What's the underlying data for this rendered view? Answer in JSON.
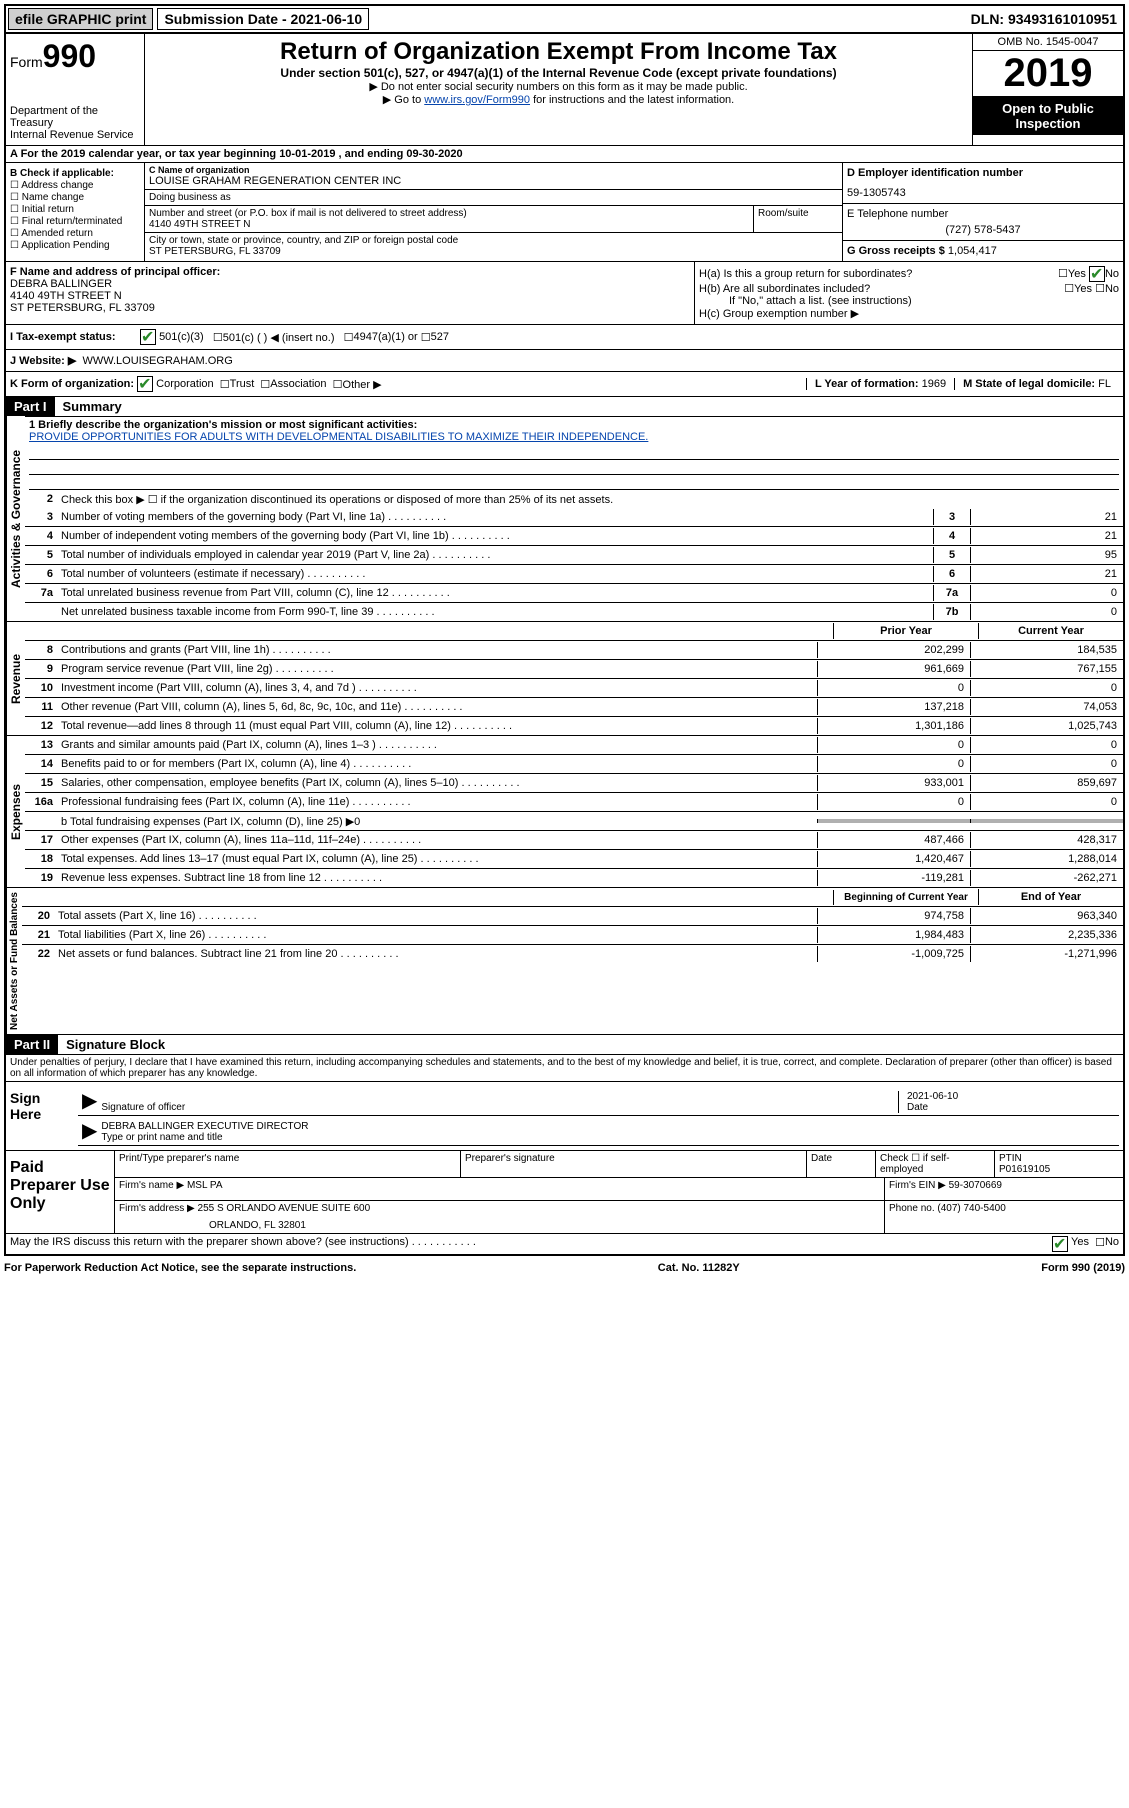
{
  "top": {
    "efile_label": "efile GRAPHIC print",
    "submission_label": "Submission Date - 2021-06-10",
    "dln": "DLN: 93493161010951"
  },
  "header": {
    "form_prefix": "Form",
    "form_number": "990",
    "dept": "Department of the Treasury",
    "irs": "Internal Revenue Service",
    "title": "Return of Organization Exempt From Income Tax",
    "subtitle": "Under section 501(c), 527, or 4947(a)(1) of the Internal Revenue Code (except private foundations)",
    "note1": "▶ Do not enter social security numbers on this form as it may be made public.",
    "note2_pre": "▶ Go to ",
    "note2_link": "www.irs.gov/Form990",
    "note2_post": " for instructions and the latest information.",
    "omb": "OMB No. 1545-0047",
    "year": "2019",
    "inspection": "Open to Public Inspection"
  },
  "row_a": "A For the 2019 calendar year, or tax year beginning 10-01-2019    , and ending 09-30-2020",
  "col_b": {
    "label": "B Check if applicable:",
    "addr_change": "Address change",
    "name_change": "Name change",
    "initial": "Initial return",
    "final": "Final return/terminated",
    "amended": "Amended return",
    "app_pending": "Application Pending"
  },
  "col_c": {
    "name_label": "C Name of organization",
    "name": "LOUISE GRAHAM REGENERATION CENTER INC",
    "dba_label": "Doing business as",
    "dba": "",
    "street_label": "Number and street (or P.O. box if mail is not delivered to street address)",
    "street": "4140 49TH STREET N",
    "room_label": "Room/suite",
    "city_label": "City or town, state or province, country, and ZIP or foreign postal code",
    "city": "ST PETERSBURG, FL  33709"
  },
  "col_d": {
    "ein_label": "D Employer identification number",
    "ein": "59-1305743",
    "tel_label": "E Telephone number",
    "tel": "(727) 578-5437",
    "gross_label": "G Gross receipts $ ",
    "gross": "1,054,417"
  },
  "col_f": {
    "label": "F  Name and address of principal officer:",
    "name": "DEBRA BALLINGER",
    "street": "4140 49TH STREET N",
    "city": "ST PETERSBURG, FL  33709"
  },
  "col_h": {
    "ha": "H(a)  Is this a group return for subordinates?",
    "hb": "H(b)  Are all subordinates included?",
    "hb_note": "If \"No,\" attach a list. (see instructions)",
    "hc": "H(c)  Group exemption number ▶",
    "yes": "Yes",
    "no": "No"
  },
  "row_i": {
    "label": "I    Tax-exempt status:",
    "opt1": "501(c)(3)",
    "opt2": "501(c) (   ) ◀ (insert no.)",
    "opt3": "4947(a)(1) or",
    "opt4": "527"
  },
  "row_j": {
    "label": "J   Website: ▶",
    "val": "WWW.LOUISEGRAHAM.ORG"
  },
  "row_k": {
    "label": "K Form of organization:",
    "corp": "Corporation",
    "trust": "Trust",
    "assoc": "Association",
    "other": "Other ▶",
    "l_label": "L Year of formation: ",
    "l_val": "1969",
    "m_label": "M State of legal domicile: ",
    "m_val": "FL"
  },
  "part1": {
    "header": "Part I",
    "title": "Summary",
    "vlabel_ag": "Activities & Governance",
    "vlabel_rev": "Revenue",
    "vlabel_exp": "Expenses",
    "vlabel_net": "Net Assets or Fund Balances",
    "line1_label": "1  Briefly describe the organization's mission or most significant activities:",
    "line1_text": "PROVIDE OPPORTUNITIES FOR ADULTS WITH DEVELOPMENTAL DISABILITIES TO MAXIMIZE THEIR INDEPENDENCE.",
    "line2": "Check this box ▶ ☐  if the organization discontinued its operations or disposed of more than 25% of its net assets.",
    "lines": [
      {
        "n": "3",
        "t": "Number of voting members of the governing body (Part VI, line 1a)",
        "ref": "3",
        "v": "21"
      },
      {
        "n": "4",
        "t": "Number of independent voting members of the governing body (Part VI, line 1b)",
        "ref": "4",
        "v": "21"
      },
      {
        "n": "5",
        "t": "Total number of individuals employed in calendar year 2019 (Part V, line 2a)",
        "ref": "5",
        "v": "95"
      },
      {
        "n": "6",
        "t": "Total number of volunteers (estimate if necessary)",
        "ref": "6",
        "v": "21"
      },
      {
        "n": "7a",
        "t": "Total unrelated business revenue from Part VIII, column (C), line 12",
        "ref": "7a",
        "v": "0"
      },
      {
        "n": "",
        "t": "Net unrelated business taxable income from Form 990-T, line 39",
        "ref": "7b",
        "v": "0"
      }
    ],
    "col_prior": "Prior Year",
    "col_current": "Current Year",
    "rev_lines": [
      {
        "n": "8",
        "t": "Contributions and grants (Part VIII, line 1h)",
        "p": "202,299",
        "c": "184,535"
      },
      {
        "n": "9",
        "t": "Program service revenue (Part VIII, line 2g)",
        "p": "961,669",
        "c": "767,155"
      },
      {
        "n": "10",
        "t": "Investment income (Part VIII, column (A), lines 3, 4, and 7d )",
        "p": "0",
        "c": "0"
      },
      {
        "n": "11",
        "t": "Other revenue (Part VIII, column (A), lines 5, 6d, 8c, 9c, 10c, and 11e)",
        "p": "137,218",
        "c": "74,053"
      },
      {
        "n": "12",
        "t": "Total revenue—add lines 8 through 11 (must equal Part VIII, column (A), line 12)",
        "p": "1,301,186",
        "c": "1,025,743"
      }
    ],
    "exp_lines": [
      {
        "n": "13",
        "t": "Grants and similar amounts paid (Part IX, column (A), lines 1–3 )",
        "p": "0",
        "c": "0"
      },
      {
        "n": "14",
        "t": "Benefits paid to or for members (Part IX, column (A), line 4)",
        "p": "0",
        "c": "0"
      },
      {
        "n": "15",
        "t": "Salaries, other compensation, employee benefits (Part IX, column (A), lines 5–10)",
        "p": "933,001",
        "c": "859,697"
      },
      {
        "n": "16a",
        "t": "Professional fundraising fees (Part IX, column (A), line 11e)",
        "p": "0",
        "c": "0"
      }
    ],
    "line16b": "b  Total fundraising expenses (Part IX, column (D), line 25) ▶0",
    "exp_lines2": [
      {
        "n": "17",
        "t": "Other expenses (Part IX, column (A), lines 11a–11d, 11f–24e)",
        "p": "487,466",
        "c": "428,317"
      },
      {
        "n": "18",
        "t": "Total expenses. Add lines 13–17 (must equal Part IX, column (A), line 25)",
        "p": "1,420,467",
        "c": "1,288,014"
      },
      {
        "n": "19",
        "t": "Revenue less expenses. Subtract line 18 from line 12",
        "p": "-119,281",
        "c": "-262,271"
      }
    ],
    "col_begin": "Beginning of Current Year",
    "col_end": "End of Year",
    "net_lines": [
      {
        "n": "20",
        "t": "Total assets (Part X, line 16)",
        "p": "974,758",
        "c": "963,340"
      },
      {
        "n": "21",
        "t": "Total liabilities (Part X, line 26)",
        "p": "1,984,483",
        "c": "2,235,336"
      },
      {
        "n": "22",
        "t": "Net assets or fund balances. Subtract line 21 from line 20",
        "p": "-1,009,725",
        "c": "-1,271,996"
      }
    ]
  },
  "part2": {
    "header": "Part II",
    "title": "Signature Block",
    "perjury": "Under penalties of perjury, I declare that I have examined this return, including accompanying schedules and statements, and to the best of my knowledge and belief, it is true, correct, and complete. Declaration of preparer (other than officer) is based on all information of which preparer has any knowledge.",
    "sign_here": "Sign Here",
    "sig_officer_label": "Signature of officer",
    "sig_date": "2021-06-10",
    "sig_date_label": "Date",
    "sig_name": "DEBRA BALLINGER  EXECUTIVE DIRECTOR",
    "sig_name_label": "Type or print name and title",
    "paid_prep": "Paid Preparer Use Only",
    "prep_name_label": "Print/Type preparer's name",
    "prep_sig_label": "Preparer's signature",
    "prep_date_label": "Date",
    "prep_check_label": "Check ☐ if self-employed",
    "ptin_label": "PTIN",
    "ptin": "P01619105",
    "firm_name_label": "Firm's name    ▶ ",
    "firm_name": "MSL PA",
    "firm_ein_label": "Firm's EIN ▶ ",
    "firm_ein": "59-3070669",
    "firm_addr_label": "Firm's address ▶ ",
    "firm_addr1": "255 S ORLANDO AVENUE SUITE 600",
    "firm_addr2": "ORLANDO, FL  32801",
    "phone_label": "Phone no. ",
    "phone": "(407) 740-5400",
    "discuss": "May the IRS discuss this return with the preparer shown above? (see instructions)",
    "yes": "Yes",
    "no": "No"
  },
  "footer": {
    "left": "For Paperwork Reduction Act Notice, see the separate instructions.",
    "center": "Cat. No. 11282Y",
    "right": "Form 990 (2019)"
  },
  "colors": {
    "link": "#0645ad",
    "black": "#000000",
    "shaded": "#b0b0b0",
    "check_green": "#2a8a2a"
  }
}
